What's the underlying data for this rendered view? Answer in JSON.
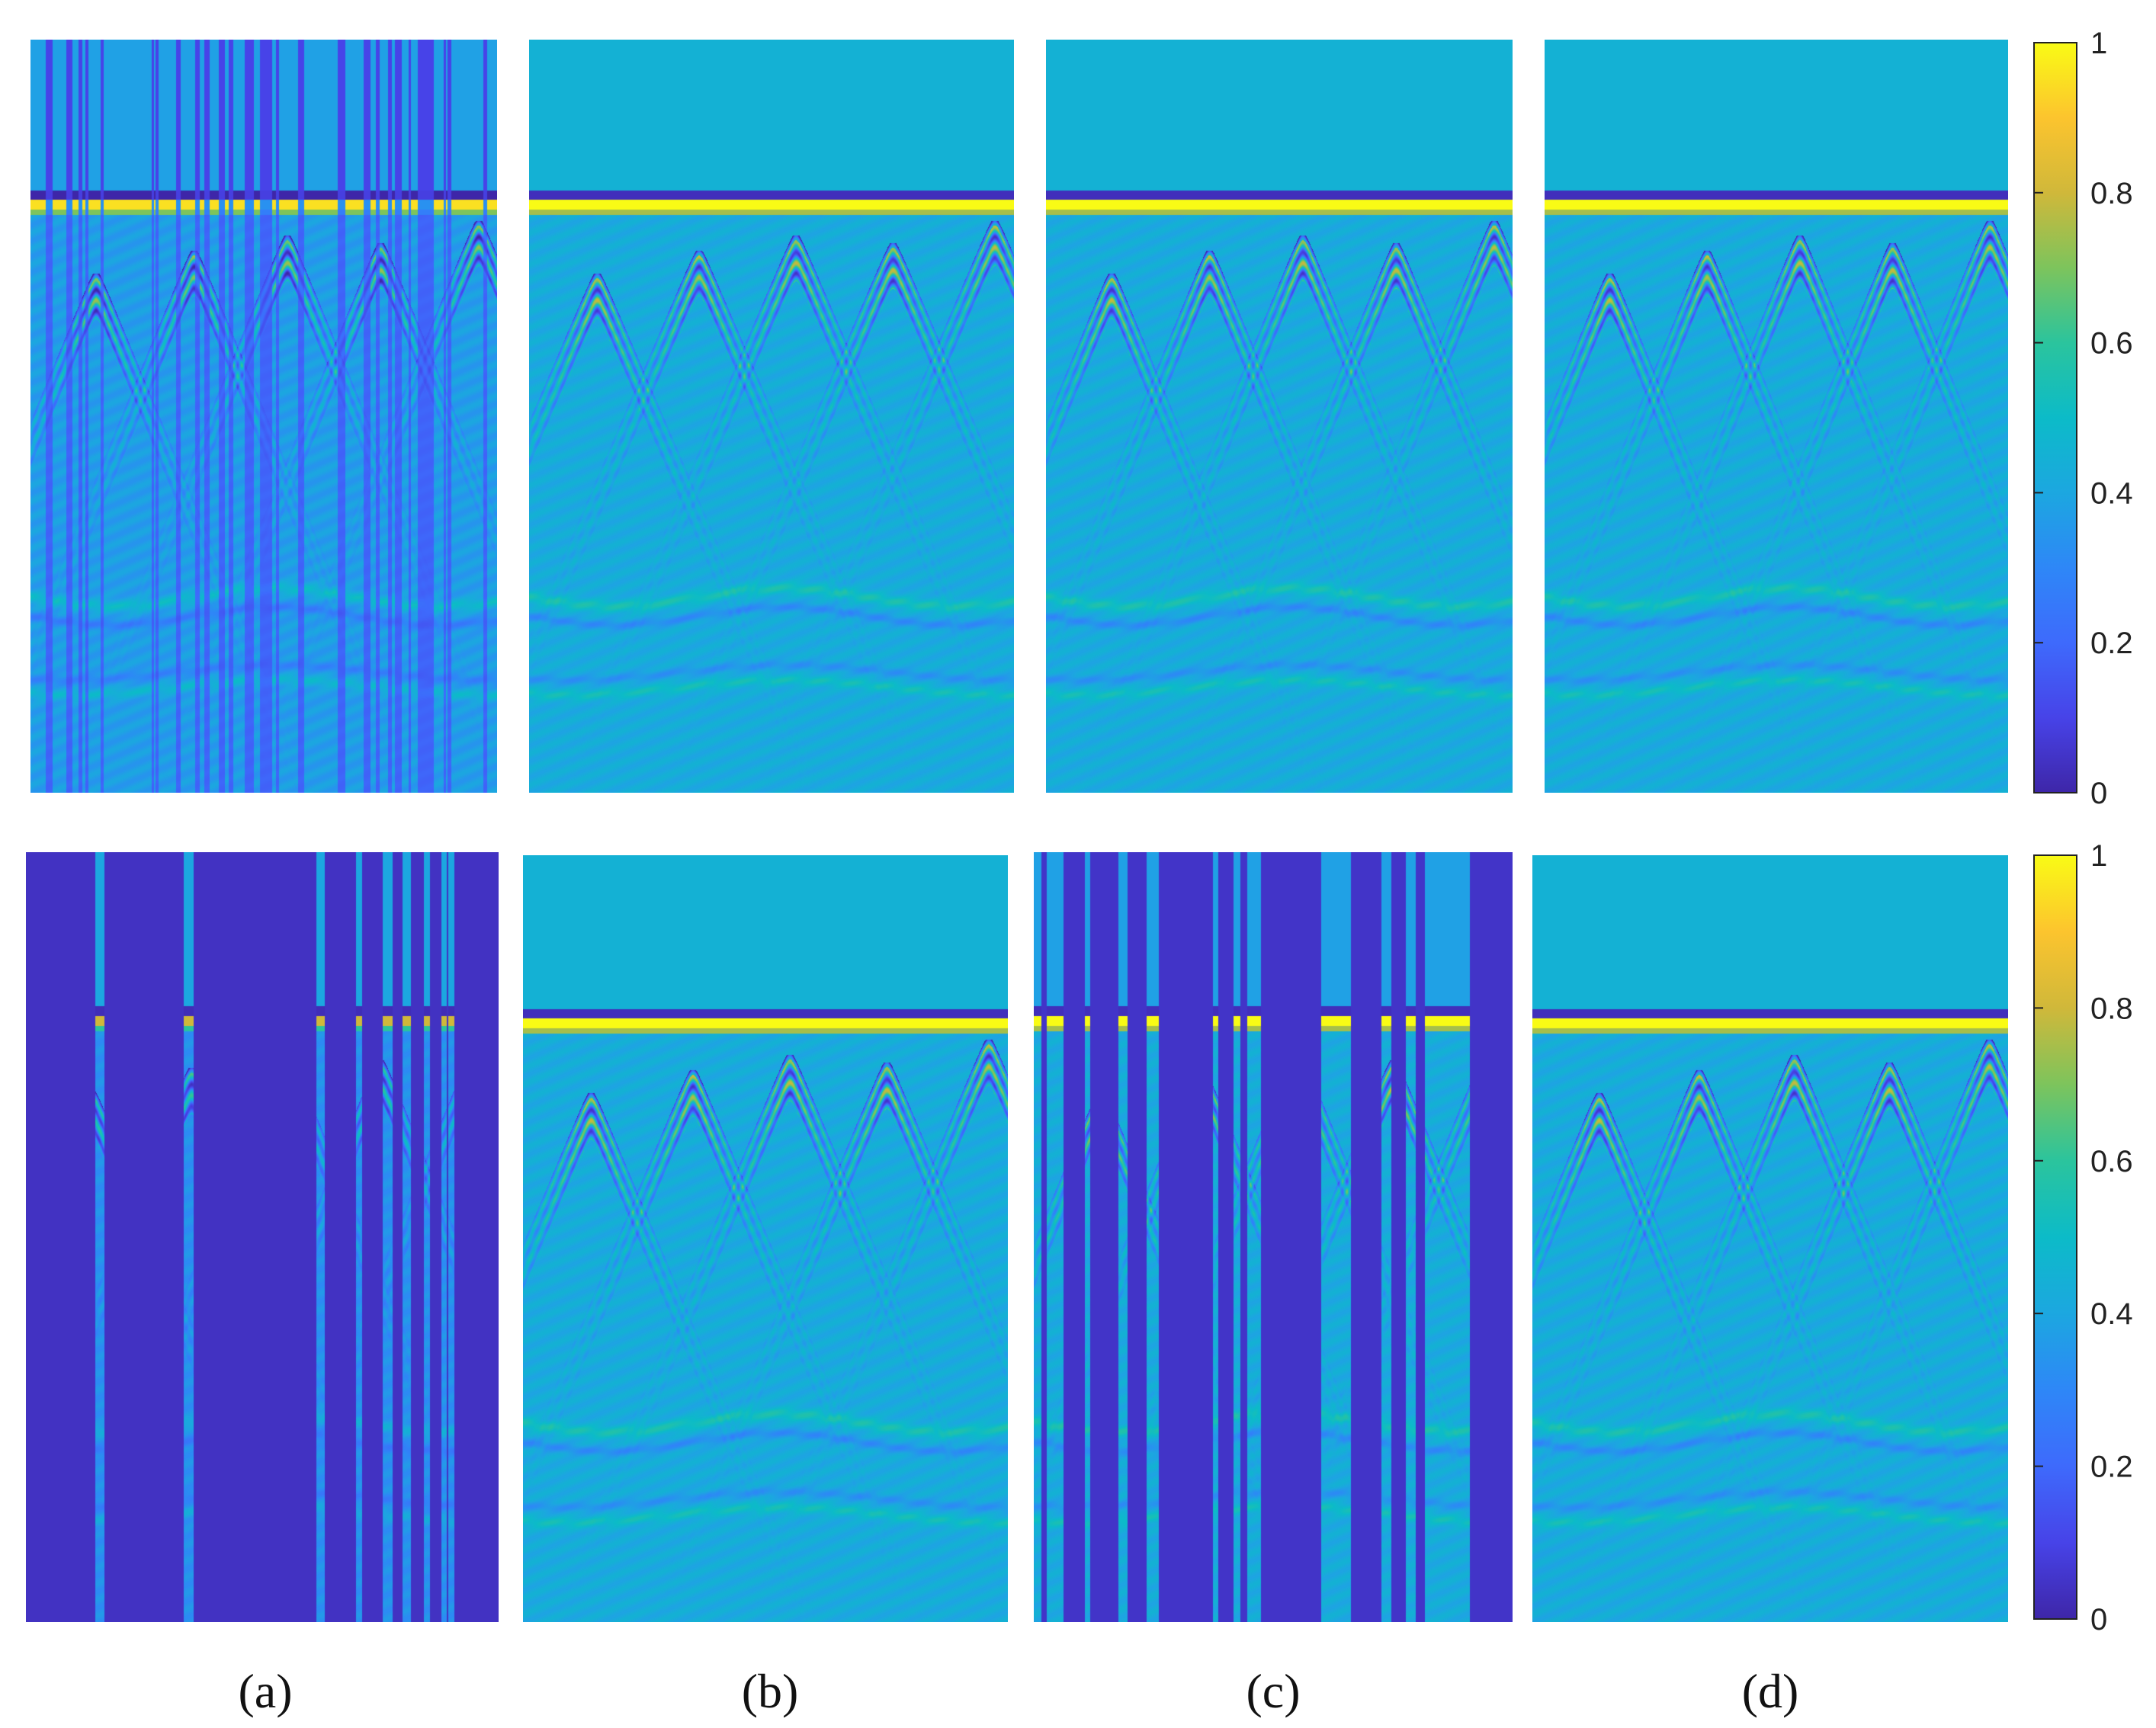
{
  "figure": {
    "panel_labels": [
      "(a)",
      "(b)",
      "(c)",
      "(d)"
    ],
    "colorbar": {
      "colormap": "parula",
      "range": [
        0,
        1
      ],
      "ticks": [
        "0",
        "0.2",
        "0.4",
        "0.6",
        "0.8",
        "1"
      ]
    }
  },
  "chart_data": {
    "type": "heatmap",
    "layout": "2 rows x 4 columns",
    "colormap": "parula",
    "value_range": [
      0,
      1
    ],
    "colorbar_ticks": [
      0,
      0.2,
      0.4,
      0.6,
      0.8,
      1
    ],
    "panels": [
      {
        "row": 1,
        "label": "(a)",
        "content": "missing-trace GPR B-scan, sparse vertical traces"
      },
      {
        "row": 1,
        "label": "(b)",
        "content": "reconstructed GPR B-scan"
      },
      {
        "row": 1,
        "label": "(c)",
        "content": "reconstructed GPR B-scan"
      },
      {
        "row": 1,
        "label": "(d)",
        "content": "reconstructed GPR B-scan"
      },
      {
        "row": 2,
        "label": "(a)",
        "content": "missing-trace GPR B-scan, heavily sparse traces"
      },
      {
        "row": 2,
        "label": "(b)",
        "content": "reconstructed GPR B-scan"
      },
      {
        "row": 2,
        "label": "(c)",
        "content": "missing-trace GPR B-scan, sparse traces"
      },
      {
        "row": 2,
        "label": "(d)",
        "content": "reconstructed GPR B-scan"
      }
    ],
    "features": {
      "air_value": 0.45,
      "surface_reflection": [
        0.05,
        1.0
      ],
      "hyperbola_apex_positions_fraction": [
        0.14,
        0.35,
        0.55,
        0.75,
        0.96
      ],
      "deep_layers": true
    }
  }
}
